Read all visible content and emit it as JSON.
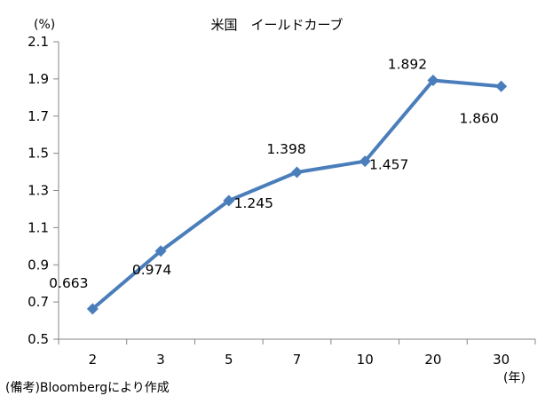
{
  "chart_data": {
    "type": "line",
    "title": "米国　イールドカーブ",
    "y_unit": "(%)",
    "x_unit": "(年)",
    "categories": [
      "2",
      "3",
      "5",
      "7",
      "10",
      "20",
      "30"
    ],
    "series": [
      {
        "values": [
          0.663,
          0.974,
          1.245,
          1.398,
          1.457,
          1.892,
          1.86
        ]
      }
    ],
    "data_labels": [
      "0.663",
      "0.974",
      "1.245",
      "1.398",
      "1.457",
      "1.892",
      "1.860"
    ],
    "ylim": [
      0.5,
      2.1
    ],
    "yticks": [
      "0.5",
      "0.7",
      "0.9",
      "1.1",
      "1.3",
      "1.5",
      "1.7",
      "1.9",
      "2.1"
    ],
    "grid": false,
    "line_color": "#4a7ebb"
  },
  "footnote": "(備考)Bloombergにより作成"
}
